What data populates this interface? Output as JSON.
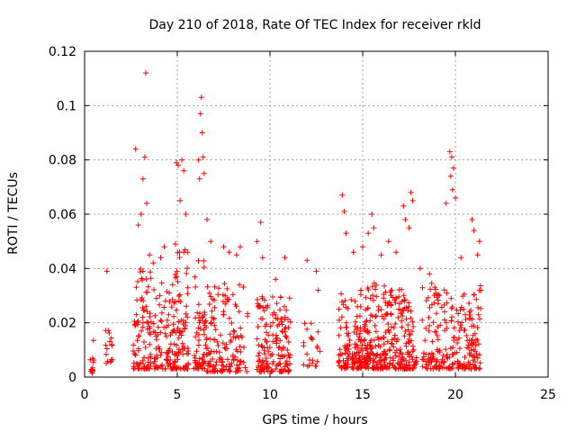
{
  "chart_data": {
    "type": "scatter",
    "title": "Day 210 of 2018, Rate Of TEC Index for receiver rkld",
    "xlabel": "GPS time / hours",
    "ylabel": "ROTI / TECUs",
    "xlim": [
      0,
      25
    ],
    "ylim": [
      0,
      0.12
    ],
    "x_ticks": [
      0,
      5,
      10,
      15,
      20,
      25
    ],
    "x_tick_labels": [
      "0",
      "5",
      "10",
      "15",
      "20",
      "25"
    ],
    "y_ticks": [
      0,
      0.02,
      0.04,
      0.06,
      0.08,
      0.1,
      0.12
    ],
    "y_tick_labels": [
      "0",
      "0.02",
      "0.04",
      "0.06",
      "0.08",
      "0.1",
      "0.12"
    ],
    "grid": true,
    "marker": "+",
    "color": "#ff0000",
    "clusters": [
      {
        "x": [
          0.3,
          0.5
        ],
        "y_min": 0.0015,
        "y_max": 0.014,
        "density": 14
      },
      {
        "x": [
          1.1,
          1.5
        ],
        "y_min": 0.005,
        "y_max": 0.018,
        "density": 16
      },
      {
        "x": [
          2.6,
          3.6
        ],
        "y_min": 0.003,
        "y_max": 0.04,
        "density": 90
      },
      {
        "x": [
          3.7,
          4.8
        ],
        "y_min": 0.003,
        "y_max": 0.035,
        "density": 80
      },
      {
        "x": [
          4.8,
          5.6
        ],
        "y_min": 0.003,
        "y_max": 0.05,
        "density": 90
      },
      {
        "x": [
          5.9,
          6.5
        ],
        "y_min": 0.003,
        "y_max": 0.045,
        "density": 60
      },
      {
        "x": [
          6.5,
          8.8
        ],
        "y_min": 0.002,
        "y_max": 0.035,
        "density": 150
      },
      {
        "x": [
          9.3,
          11.1
        ],
        "y_min": 0.002,
        "y_max": 0.03,
        "density": 160
      },
      {
        "x": [
          11.8,
          12.7
        ],
        "y_min": 0.004,
        "y_max": 0.02,
        "density": 22
      },
      {
        "x": [
          13.7,
          17.9
        ],
        "y_min": 0.003,
        "y_max": 0.035,
        "density": 420
      },
      {
        "x": [
          18.2,
          21.4
        ],
        "y_min": 0.003,
        "y_max": 0.035,
        "density": 230
      }
    ],
    "points": [
      [
        1.2,
        0.039
      ],
      [
        2.75,
        0.084
      ],
      [
        2.9,
        0.056
      ],
      [
        3.05,
        0.06
      ],
      [
        3.15,
        0.073
      ],
      [
        3.25,
        0.081
      ],
      [
        3.3,
        0.112
      ],
      [
        3.35,
        0.064
      ],
      [
        3.5,
        0.045
      ],
      [
        3.7,
        0.042
      ],
      [
        4.1,
        0.044
      ],
      [
        4.3,
        0.048
      ],
      [
        4.95,
        0.079
      ],
      [
        5.05,
        0.078
      ],
      [
        5.15,
        0.065
      ],
      [
        5.25,
        0.08
      ],
      [
        5.35,
        0.076
      ],
      [
        5.45,
        0.06
      ],
      [
        5.55,
        0.046
      ],
      [
        6.15,
        0.08
      ],
      [
        6.2,
        0.073
      ],
      [
        6.25,
        0.097
      ],
      [
        6.3,
        0.103
      ],
      [
        6.35,
        0.09
      ],
      [
        6.4,
        0.081
      ],
      [
        6.45,
        0.075
      ],
      [
        6.6,
        0.058
      ],
      [
        6.8,
        0.05
      ],
      [
        7.5,
        0.048
      ],
      [
        7.8,
        0.046
      ],
      [
        8.2,
        0.045
      ],
      [
        8.4,
        0.048
      ],
      [
        9.5,
        0.057
      ],
      [
        9.6,
        0.044
      ],
      [
        9.3,
        0.05
      ],
      [
        10.3,
        0.036
      ],
      [
        10.8,
        0.044
      ],
      [
        12.0,
        0.043
      ],
      [
        12.5,
        0.039
      ],
      [
        12.6,
        0.032
      ],
      [
        13.9,
        0.067
      ],
      [
        14.0,
        0.061
      ],
      [
        14.1,
        0.053
      ],
      [
        14.5,
        0.046
      ],
      [
        15.0,
        0.048
      ],
      [
        15.3,
        0.053
      ],
      [
        15.5,
        0.06
      ],
      [
        15.6,
        0.055
      ],
      [
        16.0,
        0.045
      ],
      [
        16.4,
        0.05
      ],
      [
        16.8,
        0.046
      ],
      [
        17.2,
        0.063
      ],
      [
        17.3,
        0.058
      ],
      [
        17.6,
        0.068
      ],
      [
        17.7,
        0.065
      ],
      [
        17.5,
        0.055
      ],
      [
        18.1,
        0.04
      ],
      [
        18.6,
        0.038
      ],
      [
        19.5,
        0.064
      ],
      [
        19.7,
        0.083
      ],
      [
        19.8,
        0.081
      ],
      [
        19.9,
        0.077
      ],
      [
        19.75,
        0.074
      ],
      [
        19.85,
        0.069
      ],
      [
        20.0,
        0.066
      ],
      [
        20.3,
        0.044
      ],
      [
        20.9,
        0.058
      ],
      [
        21.0,
        0.054
      ],
      [
        21.2,
        0.045
      ],
      [
        21.3,
        0.05
      ]
    ]
  }
}
